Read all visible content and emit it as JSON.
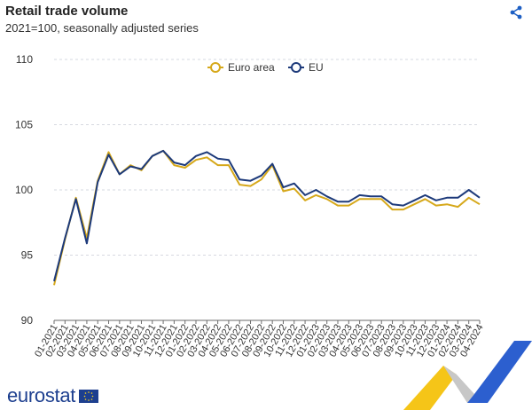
{
  "header": {
    "title": "Retail trade volume",
    "subtitle": "2021=100, seasonally adjusted series"
  },
  "brand": {
    "name": "eurostat"
  },
  "colors": {
    "euro_area": "#d6a81a",
    "eu": "#1d3a7a",
    "grid": "#d6d9e0",
    "axis": "#6b6b6b"
  },
  "chart_data": {
    "type": "line",
    "title": "Retail trade volume",
    "subtitle": "2021=100, seasonally adjusted series",
    "ylim": [
      90,
      110
    ],
    "yticks": [
      90,
      95,
      100,
      105,
      110
    ],
    "legend_position": "top-center",
    "categories": [
      "01-2021",
      "02-2021",
      "03-2021",
      "04-2021",
      "05-2021",
      "06-2021",
      "07-2021",
      "08-2021",
      "09-2021",
      "10-2021",
      "11-2021",
      "12-2021",
      "01-2022",
      "02-2022",
      "03-2022",
      "04-2022",
      "05-2022",
      "06-2022",
      "07-2022",
      "08-2022",
      "09-2022",
      "10-2022",
      "11-2022",
      "12-2022",
      "01-2023",
      "02-2023",
      "03-2023",
      "04-2023",
      "05-2023",
      "06-2023",
      "07-2023",
      "08-2023",
      "09-2023",
      "10-2023",
      "11-2023",
      "12-2023",
      "01-2024",
      "02-2024",
      "03-2024",
      "04-2024"
    ],
    "series": [
      {
        "name": "Euro area",
        "color": "#d6a81a",
        "values": [
          92.7,
          96.2,
          99.4,
          96.3,
          100.7,
          102.9,
          101.2,
          101.9,
          101.5,
          102.6,
          103.0,
          101.9,
          101.7,
          102.3,
          102.5,
          101.9,
          101.9,
          100.4,
          100.3,
          100.8,
          101.9,
          99.9,
          100.1,
          99.2,
          99.6,
          99.3,
          98.8,
          98.8,
          99.3,
          99.3,
          99.3,
          98.5,
          98.5,
          98.9,
          99.3,
          98.8,
          98.9,
          98.7,
          99.4,
          98.9
        ]
      },
      {
        "name": "EU",
        "color": "#1d3a7a",
        "values": [
          93.0,
          96.3,
          99.3,
          95.9,
          100.6,
          102.7,
          101.2,
          101.8,
          101.6,
          102.6,
          103.0,
          102.1,
          101.9,
          102.6,
          102.9,
          102.4,
          102.3,
          100.8,
          100.7,
          101.1,
          102.0,
          100.2,
          100.5,
          99.6,
          100.0,
          99.5,
          99.1,
          99.1,
          99.6,
          99.5,
          99.5,
          98.9,
          98.8,
          99.2,
          99.6,
          99.2,
          99.4,
          99.4,
          100.0,
          99.4
        ]
      }
    ]
  }
}
